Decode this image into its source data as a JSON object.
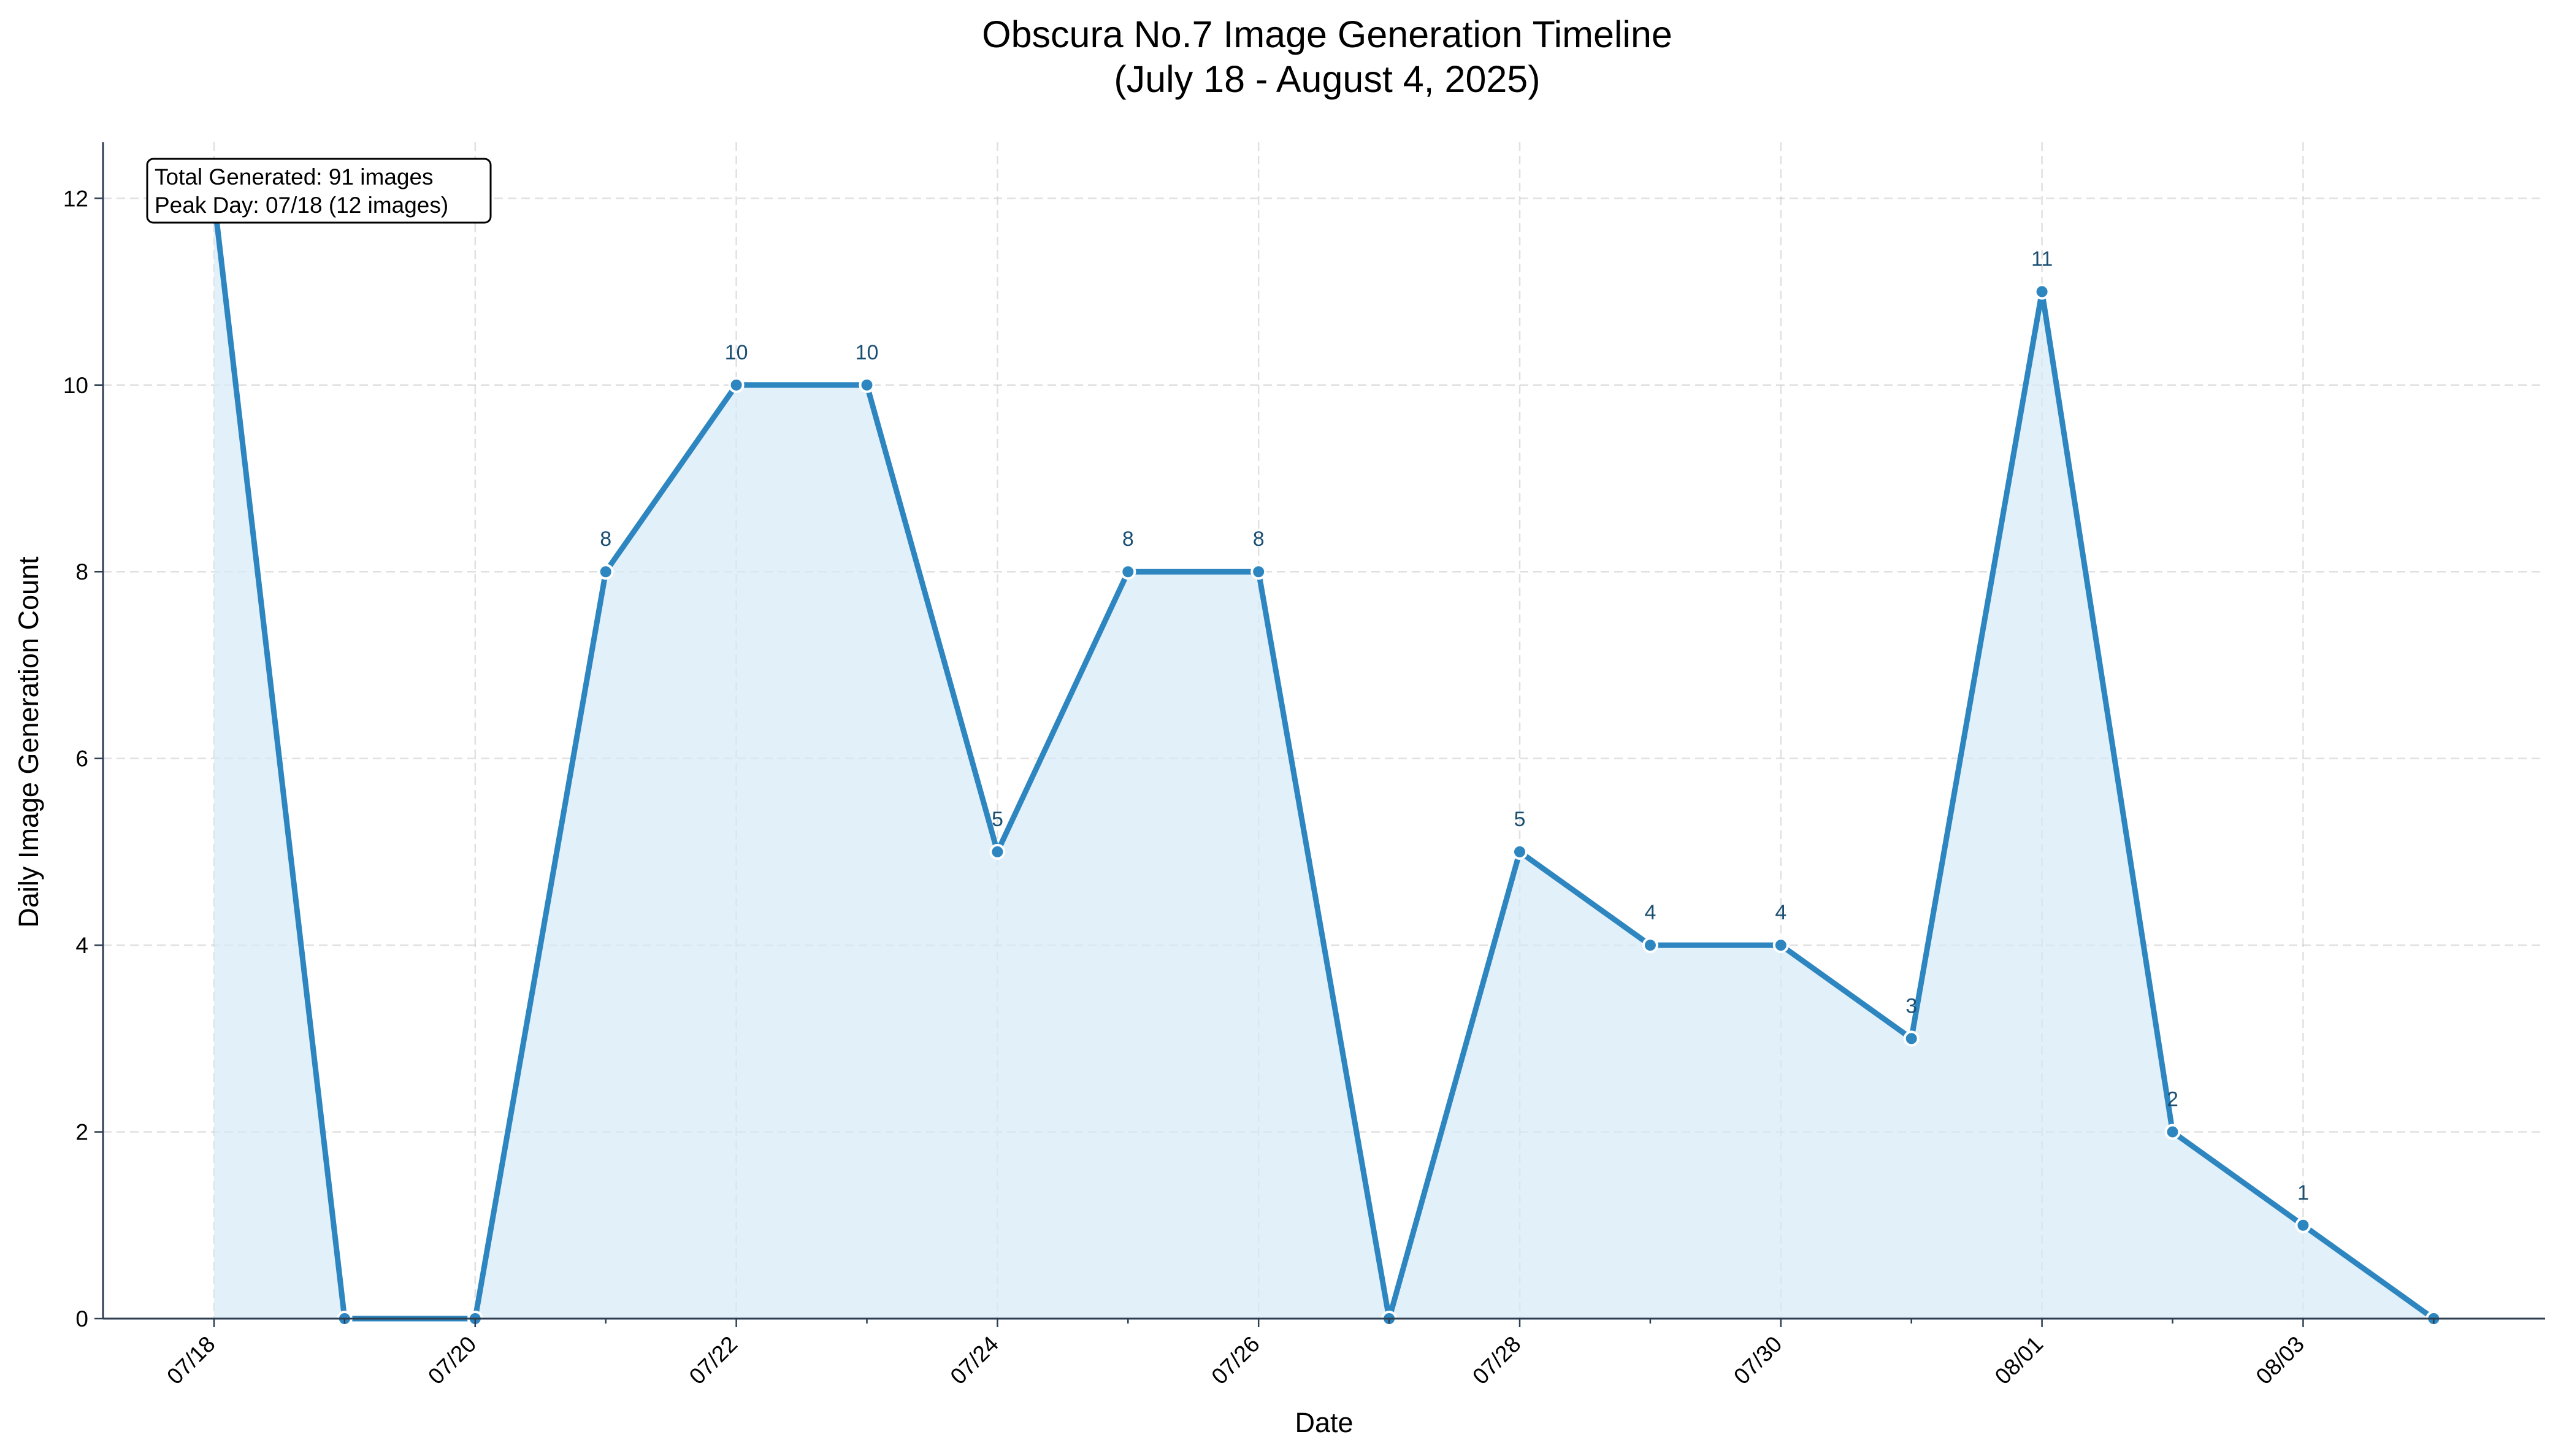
{
  "chart_data": {
    "type": "area",
    "title": "Obscura No.7 Image Generation Timeline",
    "subtitle": "(July 18 - August 4, 2025)",
    "xlabel": "Date",
    "ylabel": "Daily Image Generation Count",
    "x": [
      "07/18",
      "07/19",
      "07/20",
      "07/21",
      "07/22",
      "07/23",
      "07/24",
      "07/25",
      "07/26",
      "07/27",
      "07/28",
      "07/29",
      "07/30",
      "07/31",
      "08/01",
      "08/02",
      "08/03",
      "08/04"
    ],
    "values": [
      12,
      0,
      0,
      8,
      10,
      10,
      5,
      8,
      8,
      0,
      5,
      4,
      4,
      3,
      11,
      2,
      1,
      0
    ],
    "xtick_labels": [
      "07/18",
      "07/20",
      "07/22",
      "07/24",
      "07/26",
      "07/28",
      "07/30",
      "08/01",
      "08/03"
    ],
    "yticks": [
      0,
      2,
      4,
      6,
      8,
      10,
      12
    ],
    "ylim": [
      0,
      12.6
    ],
    "grid": true,
    "annotation": {
      "lines": [
        "Total Generated: 91 images",
        "Peak Day: 07/18 (12 images)"
      ],
      "placement": "top-left"
    },
    "colors": {
      "line": "#2e86c1",
      "fill": "#d6eaf8",
      "marker": "#2e86c1",
      "label": "#1b4f72",
      "grid": "#cccccc",
      "axis": "#2c3e50"
    }
  }
}
